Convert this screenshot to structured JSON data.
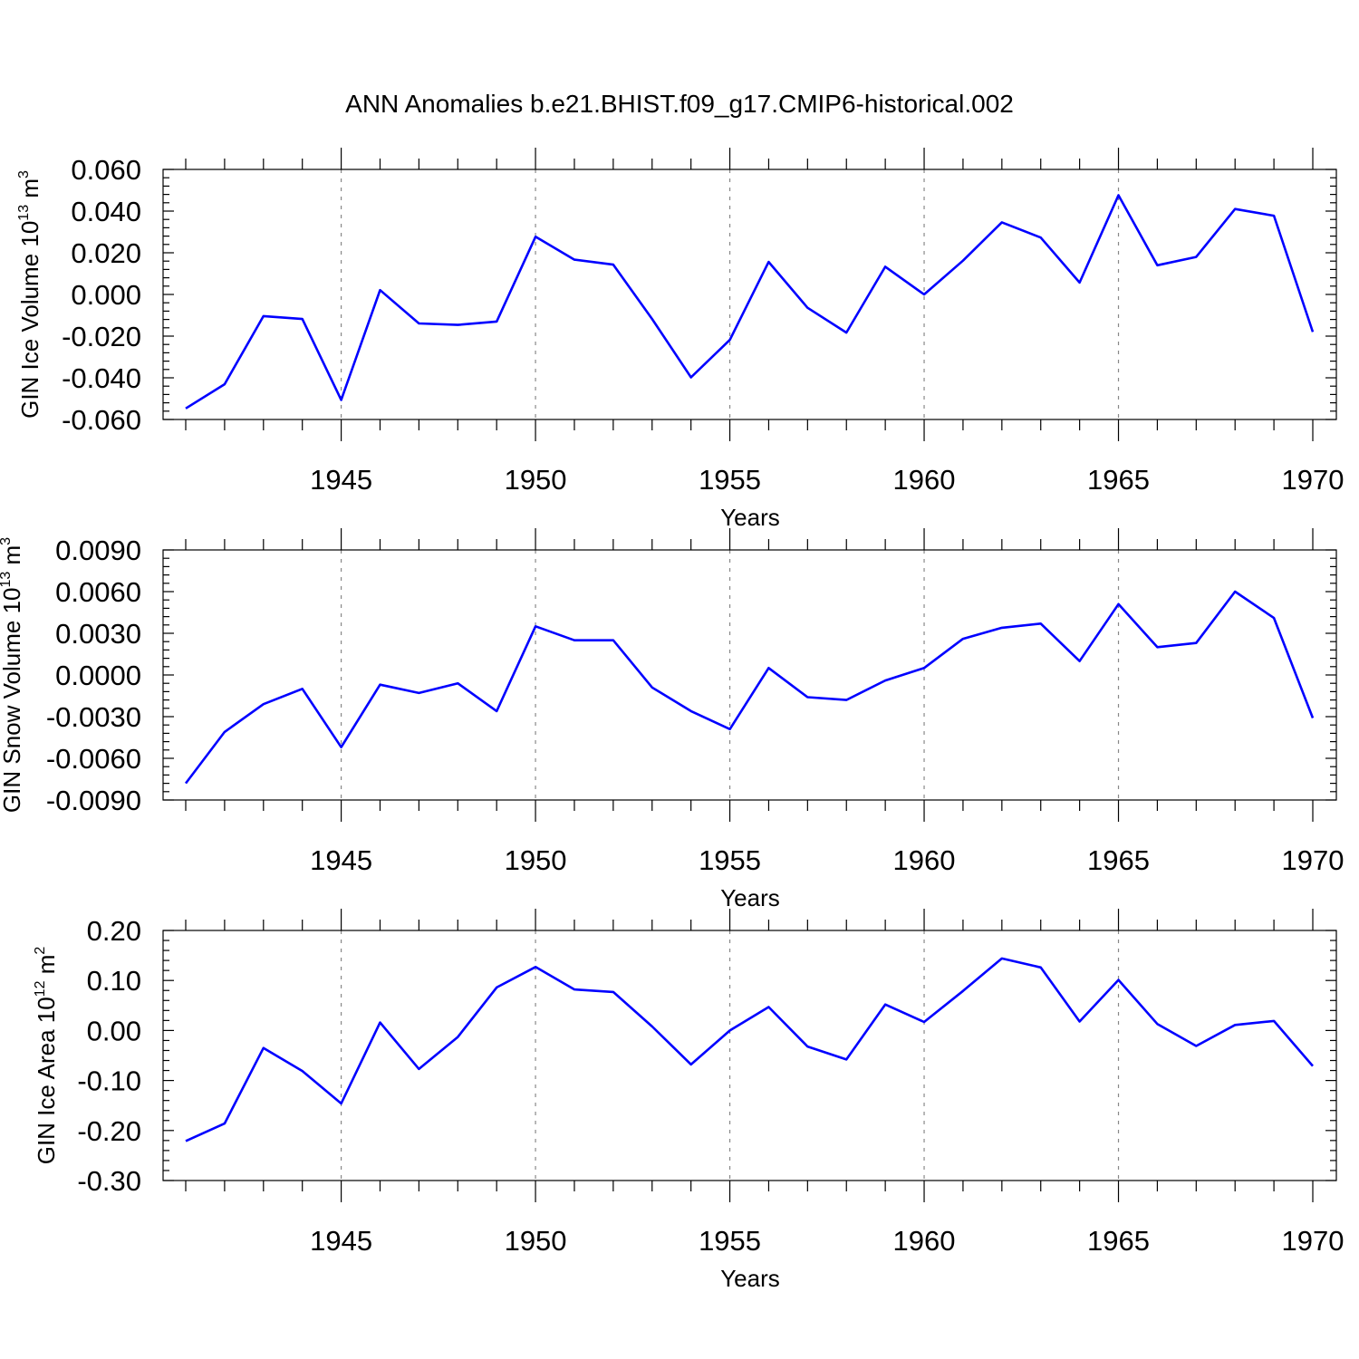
{
  "chart_data": [
    {
      "type": "line",
      "title": "ANN Anomalies b.e21.BHIST.f09_g17.CMIP6-historical.002",
      "xlabel": "Years",
      "ylabel": "GIN Ice Volume 10",
      "ylabel_exp": "13",
      "ylabel_unit": " m",
      "ylabel_unit_exp": "3",
      "xlim": [
        1941,
        1970
      ],
      "ylim": [
        -0.06,
        0.06
      ],
      "y_major_ticks": [
        "-0.060",
        "-0.040",
        "-0.020",
        "0.000",
        "0.020",
        "0.040",
        "0.060"
      ],
      "x_major_ticks": [
        "1945",
        "1950",
        "1955",
        "1960",
        "1965",
        "1970"
      ],
      "grid": "vertical dashed at labeled years",
      "color": "#0000ff",
      "x": [
        1941,
        1942,
        1943,
        1944,
        1945,
        1946,
        1947,
        1948,
        1949,
        1950,
        1951,
        1952,
        1953,
        1954,
        1955,
        1956,
        1957,
        1958,
        1959,
        1960,
        1961,
        1962,
        1963,
        1964,
        1965,
        1966,
        1967,
        1968,
        1969,
        1970
      ],
      "values": [
        -0.0547,
        -0.0431,
        -0.0104,
        -0.0118,
        -0.0506,
        0.0021,
        -0.0139,
        -0.0146,
        -0.013,
        0.0277,
        0.0167,
        0.0143,
        -0.0118,
        -0.0398,
        -0.0218,
        0.0156,
        -0.0064,
        -0.0183,
        0.0133,
        0.0,
        0.0162,
        0.0346,
        0.0273,
        0.0057,
        0.0476,
        0.014,
        0.018,
        0.041,
        0.0378,
        -0.018
      ]
    },
    {
      "type": "line",
      "xlabel": "Years",
      "ylabel": "GIN Snow Volume 10",
      "ylabel_exp": "13",
      "ylabel_unit": " m",
      "ylabel_unit_exp": "3",
      "xlim": [
        1941,
        1970
      ],
      "ylim": [
        -0.009,
        0.009
      ],
      "y_major_ticks": [
        "-0.0090",
        "-0.0060",
        "-0.0030",
        "0.0000",
        "0.0030",
        "0.0060",
        "0.0090"
      ],
      "x_major_ticks": [
        "1945",
        "1950",
        "1955",
        "1960",
        "1965",
        "1970"
      ],
      "grid": "vertical dashed at labeled years",
      "color": "#0000ff",
      "x": [
        1941,
        1942,
        1943,
        1944,
        1945,
        1946,
        1947,
        1948,
        1949,
        1950,
        1951,
        1952,
        1953,
        1954,
        1955,
        1956,
        1957,
        1958,
        1959,
        1960,
        1961,
        1962,
        1963,
        1964,
        1965,
        1966,
        1967,
        1968,
        1969,
        1970
      ],
      "values": [
        -0.0078,
        -0.0041,
        -0.0021,
        -0.001,
        -0.0052,
        -0.0007,
        -0.0013,
        -0.0006,
        -0.0026,
        0.0035,
        0.0025,
        0.0025,
        -0.0009,
        -0.0026,
        -0.0039,
        0.0005,
        -0.0016,
        -0.0018,
        -0.0004,
        0.0005,
        0.0026,
        0.0034,
        0.0037,
        0.001,
        0.0051,
        0.002,
        0.0023,
        0.006,
        0.0041,
        -0.0031
      ]
    },
    {
      "type": "line",
      "xlabel": "Years",
      "ylabel": "GIN Ice Area 10",
      "ylabel_exp": "12",
      "ylabel_unit": " m",
      "ylabel_unit_exp": "2",
      "xlim": [
        1941,
        1970
      ],
      "ylim": [
        -0.3,
        0.2
      ],
      "y_major_ticks": [
        "-0.30",
        "-0.20",
        "-0.10",
        "0.00",
        "0.10",
        "0.20"
      ],
      "x_major_ticks": [
        "1945",
        "1950",
        "1955",
        "1960",
        "1965",
        "1970"
      ],
      "grid": "vertical dashed at labeled years",
      "color": "#0000ff",
      "x": [
        1941,
        1942,
        1943,
        1944,
        1945,
        1946,
        1947,
        1948,
        1949,
        1950,
        1951,
        1952,
        1953,
        1954,
        1955,
        1956,
        1957,
        1958,
        1959,
        1960,
        1961,
        1962,
        1963,
        1964,
        1965,
        1966,
        1967,
        1968,
        1969,
        1970
      ],
      "values": [
        -0.221,
        -0.186,
        -0.035,
        -0.081,
        -0.146,
        0.016,
        -0.077,
        -0.013,
        0.086,
        0.127,
        0.082,
        0.077,
        0.008,
        -0.068,
        0.0,
        0.047,
        -0.032,
        -0.058,
        0.052,
        0.017,
        0.079,
        0.144,
        0.126,
        0.018,
        0.101,
        0.013,
        -0.031,
        0.011,
        0.019,
        -0.071
      ]
    }
  ]
}
